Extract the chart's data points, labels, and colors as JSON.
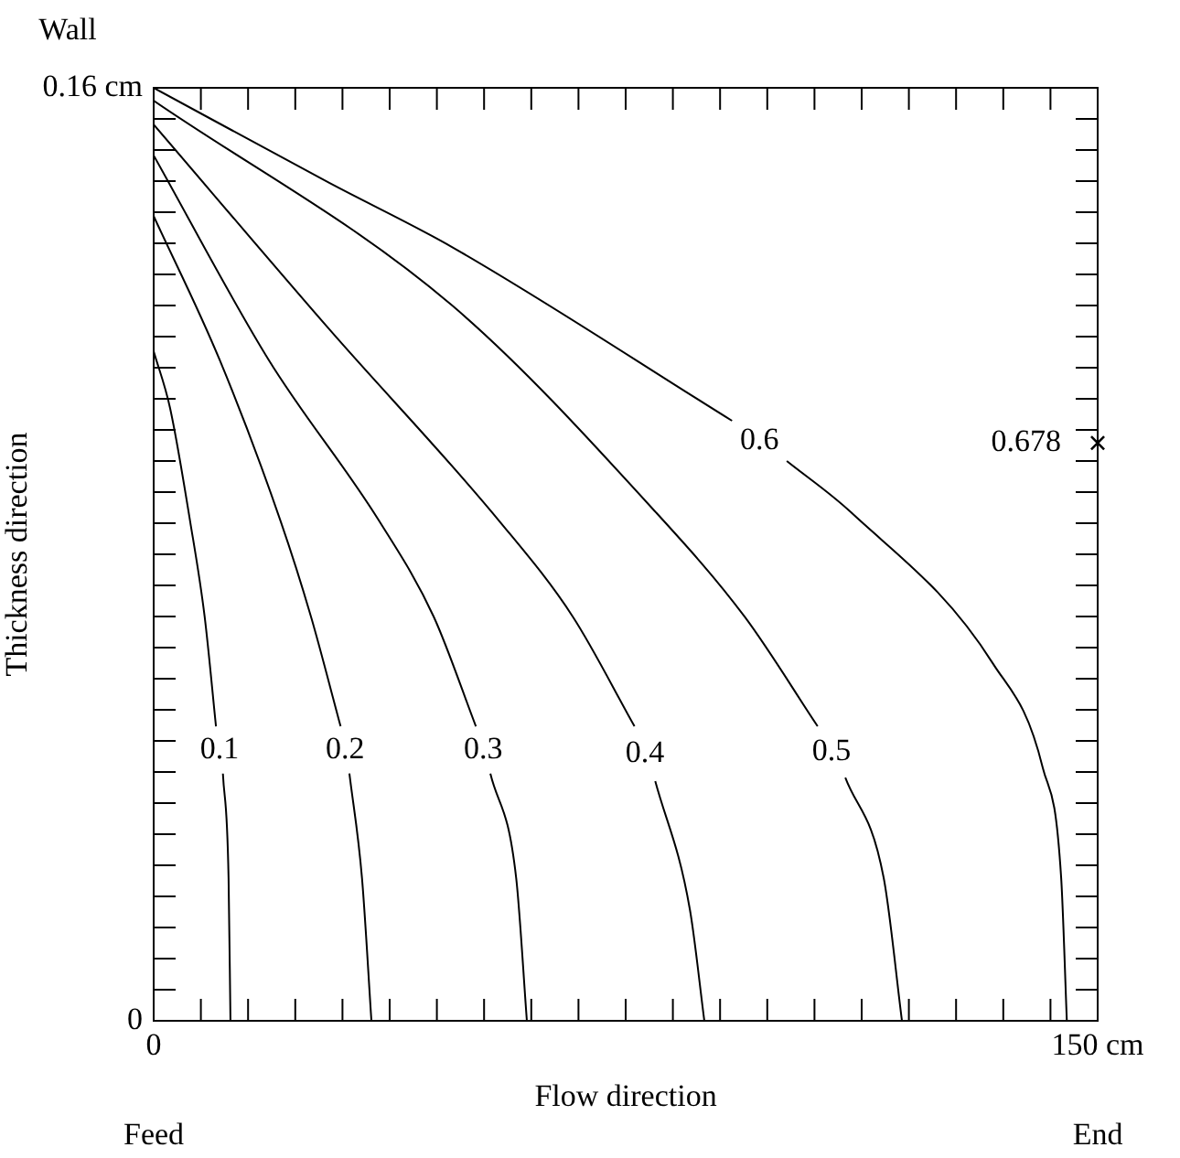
{
  "chart_data": {
    "type": "line",
    "xlabel": "Flow direction",
    "ylabel": "Thickness direction",
    "annotations": [
      "Wall",
      "Feed",
      "End",
      {
        "text": "0.678",
        "x": 150,
        "y": 0.0991
      }
    ],
    "xlim": [
      0,
      150
    ],
    "ylim": [
      0,
      0.16
    ],
    "xticks": [
      0,
      {
        "value": 7.5,
        "label": null
      },
      {
        "value": 15,
        "label": null
      },
      {
        "value": 22.5,
        "label": null
      },
      {
        "value": 30,
        "label": null
      },
      {
        "value": 37.5,
        "label": null
      },
      {
        "value": 45,
        "label": null
      },
      {
        "value": 52.5,
        "label": null
      },
      {
        "value": 60,
        "label": null
      },
      {
        "value": 67.5,
        "label": null
      },
      {
        "value": 75,
        "label": null
      },
      {
        "value": 82.5,
        "label": null
      },
      {
        "value": 90,
        "label": null
      },
      {
        "value": 97.5,
        "label": null
      },
      {
        "value": 105,
        "label": null
      },
      {
        "value": 112.5,
        "label": null
      },
      {
        "value": 120,
        "label": null
      },
      {
        "value": 127.5,
        "label": null
      },
      {
        "value": 135,
        "label": null
      },
      {
        "value": 142.5,
        "label": null
      },
      {
        "value": 150,
        "label": "150 cm"
      }
    ],
    "yticks": [
      0,
      {
        "value": 0.00533,
        "label": null
      },
      {
        "value": 0.01067,
        "label": null
      },
      {
        "value": 0.016,
        "label": null
      },
      {
        "value": 0.02133,
        "label": null
      },
      {
        "value": 0.02667,
        "label": null
      },
      {
        "value": 0.032,
        "label": null
      },
      {
        "value": 0.03733,
        "label": null
      },
      {
        "value": 0.04267,
        "label": null
      },
      {
        "value": 0.048,
        "label": null
      },
      {
        "value": 0.05333,
        "label": null
      },
      {
        "value": 0.05867,
        "label": null
      },
      {
        "value": 0.064,
        "label": null
      },
      {
        "value": 0.06933,
        "label": null
      },
      {
        "value": 0.07467,
        "label": null
      },
      {
        "value": 0.08,
        "label": null
      },
      {
        "value": 0.08533,
        "label": null
      },
      {
        "value": 0.09067,
        "label": null
      },
      {
        "value": 0.096,
        "label": null
      },
      {
        "value": 0.10133,
        "label": null
      },
      {
        "value": 0.10667,
        "label": null
      },
      {
        "value": 0.112,
        "label": null
      },
      {
        "value": 0.11733,
        "label": null
      },
      {
        "value": 0.12267,
        "label": null
      },
      {
        "value": 0.128,
        "label": null
      },
      {
        "value": 0.13333,
        "label": null
      },
      {
        "value": 0.13867,
        "label": null
      },
      {
        "value": 0.144,
        "label": null
      },
      {
        "value": 0.14933,
        "label": null
      },
      {
        "value": 0.15467,
        "label": null
      },
      {
        "value": 0.16,
        "label": "0.16 cm"
      }
    ],
    "grid": false,
    "legend": false,
    "marker": "none",
    "series": [
      {
        "name": "0.1",
        "color": "#000000",
        "x": [
          0,
          2.6,
          5.8,
          8.1,
          9.9,
          10.5,
          11.0,
          11.9,
          12.2
        ],
        "values": [
          0.1148,
          0.1051,
          0.0856,
          0.0693,
          0.0505,
          null,
          0.0424,
          0.0245,
          0
        ]
      },
      {
        "name": "0.2",
        "color": "#000000",
        "x": [
          0,
          10.5,
          20.2,
          25.0,
          29.7,
          30.4,
          31.1,
          33.1,
          34.6
        ],
        "values": [
          0.138,
          0.1133,
          0.0856,
          0.0693,
          0.0505,
          null,
          0.0424,
          0.0245,
          0
        ]
      },
      {
        "name": "0.3",
        "color": "#000000",
        "x": [
          0,
          18.3,
          35.9,
          44.5,
          51.2,
          52.3,
          53.5,
          57.6,
          59.3
        ],
        "values": [
          0.1484,
          0.1133,
          0.0856,
          0.0693,
          0.0505,
          null,
          0.0424,
          0.0245,
          0
        ]
      },
      {
        "name": "0.4",
        "color": "#000000",
        "x": [
          0,
          27.9,
          55,
          66.6,
          76.4,
          78,
          79.7,
          85.2,
          87.5
        ],
        "values": [
          0.1537,
          0.1186,
          0.0856,
          0.0693,
          0.0505,
          null,
          0.0411,
          0.0191,
          0
        ]
      },
      {
        "name": "0.5",
        "color": "#000000",
        "x": [
          0,
          47.4,
          79.8,
          93.9,
          105.5,
          107.7,
          109.9,
          116.0,
          118.9
        ],
        "values": [
          0.1578,
          0.1227,
          0.0872,
          0.0693,
          0.0505,
          null,
          0.0417,
          0.0245,
          0
        ]
      },
      {
        "name": "0.6",
        "color": "#000000",
        "x": [
          0,
          27.9,
          47.4,
          91.9,
          96.2,
          100.6,
          110.8,
          133.4,
          141.3,
          144.2,
          145.1
        ],
        "values": [
          0.16,
          0.1437,
          0.1327,
          0.1029,
          null,
          0.096,
          0.0872,
          0.0612,
          0.0433,
          0.0245,
          0
        ]
      },
      {
        "type": "scatter",
        "color": "#000000",
        "marker": "cross",
        "x": [
          150
        ],
        "values": [
          0.0991
        ]
      }
    ]
  }
}
